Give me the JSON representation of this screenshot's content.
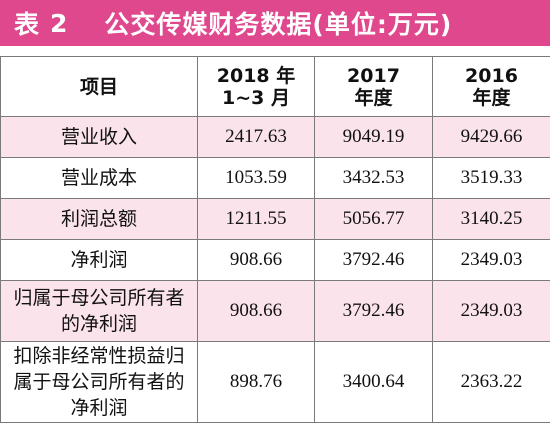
{
  "title": {
    "label": "表",
    "number": "2",
    "text": "公交传媒财务数据(单位:万元)"
  },
  "colors": {
    "title_bg": "#e0488d",
    "row_pink": "#fbe3ec"
  },
  "columns": [
    "项目",
    "2018 年\n1~3 月",
    "2017\n年度",
    "2016\n年度"
  ],
  "rows": [
    {
      "item": "营业收入",
      "v2018": "2417.63",
      "v2017": "9049.19",
      "v2016": "9429.66"
    },
    {
      "item": "营业成本",
      "v2018": "1053.59",
      "v2017": "3432.53",
      "v2016": "3519.33"
    },
    {
      "item": "利润总额",
      "v2018": "1211.55",
      "v2017": "5056.77",
      "v2016": "3140.25"
    },
    {
      "item": "净利润",
      "v2018": "908.66",
      "v2017": "3792.46",
      "v2016": "2349.03"
    },
    {
      "item": "归属于母公司所有者的净利润",
      "v2018": "908.66",
      "v2017": "3792.46",
      "v2016": "2349.03"
    },
    {
      "item": "扣除非经常性损益归属于母公司所有者的净利润",
      "v2018": "898.76",
      "v2017": "3400.64",
      "v2016": "2363.22"
    }
  ]
}
